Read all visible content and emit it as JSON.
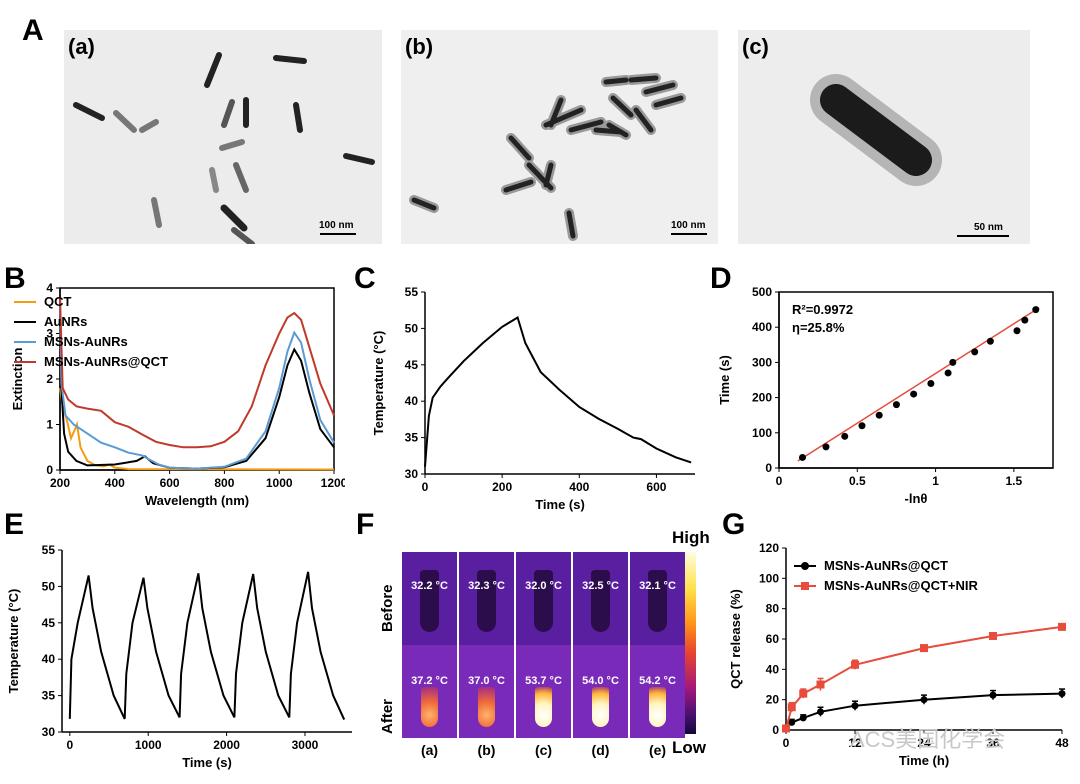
{
  "panels": {
    "A": {
      "letter": "A",
      "images": [
        {
          "label": "(a)",
          "scale": "100 nm"
        },
        {
          "label": "(b)",
          "scale": "100 nm"
        },
        {
          "label": "(c)",
          "scale": "50 nm"
        }
      ]
    },
    "B": {
      "letter": "B"
    },
    "C": {
      "letter": "C"
    },
    "D": {
      "letter": "D"
    },
    "E": {
      "letter": "E"
    },
    "F": {
      "letter": "F",
      "row_before": "Before",
      "row_after": "After",
      "cols": [
        "(a)",
        "(b)",
        "(c)",
        "(d)",
        "(e)"
      ],
      "before_temps": [
        "32.2 °C",
        "32.3 °C",
        "32.0 °C",
        "32.5 °C",
        "32.1 °C"
      ],
      "after_temps": [
        "37.2 °C",
        "37.0 °C",
        "53.7 °C",
        "54.0 °C",
        "54.2 °C"
      ],
      "colorbar_high": "High",
      "colorbar_low": "Low",
      "glow": [
        0.4,
        0.4,
        1.0,
        1.0,
        1.0
      ]
    },
    "G": {
      "letter": "G"
    }
  },
  "watermark": "ACS美国化学会",
  "chart_data": [
    {
      "id": "B",
      "type": "line",
      "xlabel": "Wavelength (nm)",
      "ylabel": "Extinction",
      "xlim": [
        200,
        1200
      ],
      "ylim": [
        0,
        4
      ],
      "xticks": [
        200,
        400,
        600,
        800,
        1000,
        1200
      ],
      "yticks": [
        0,
        1,
        2,
        3,
        4
      ],
      "legend": "top-left",
      "series": [
        {
          "name": "QCT",
          "color": "#f39c12",
          "x": [
            200,
            210,
            225,
            240,
            255,
            262,
            275,
            300,
            330,
            360,
            380,
            400,
            450,
            1200
          ],
          "y": [
            1.8,
            1.4,
            1.1,
            0.7,
            0.9,
            1.0,
            0.5,
            0.2,
            0.1,
            0.08,
            0.12,
            0.05,
            0.02,
            0.01
          ]
        },
        {
          "name": "AuNRs",
          "color": "#000000",
          "x": [
            200,
            205,
            215,
            230,
            260,
            300,
            400,
            480,
            510,
            540,
            600,
            700,
            800,
            880,
            950,
            1000,
            1030,
            1055,
            1080,
            1110,
            1150,
            1200
          ],
          "y": [
            3.4,
            1.8,
            0.8,
            0.4,
            0.2,
            0.1,
            0.12,
            0.2,
            0.3,
            0.15,
            0.05,
            0.03,
            0.06,
            0.2,
            0.7,
            1.6,
            2.3,
            2.65,
            2.4,
            1.7,
            0.9,
            0.5
          ]
        },
        {
          "name": "MSNs-AuNRs",
          "color": "#5b9bd5",
          "x": [
            200,
            205,
            220,
            250,
            300,
            350,
            400,
            450,
            500,
            520,
            560,
            600,
            700,
            800,
            880,
            950,
            1000,
            1030,
            1055,
            1080,
            1110,
            1150,
            1200
          ],
          "y": [
            3.6,
            1.9,
            1.2,
            1.0,
            0.8,
            0.6,
            0.5,
            0.38,
            0.32,
            0.25,
            0.12,
            0.05,
            0.03,
            0.07,
            0.25,
            0.85,
            1.8,
            2.6,
            3.02,
            2.8,
            2.0,
            1.1,
            0.6
          ]
        },
        {
          "name": "MSNs-AuNRs@QCT",
          "color": "#c0392b",
          "x": [
            200,
            210,
            230,
            260,
            300,
            350,
            400,
            450,
            500,
            550,
            600,
            650,
            700,
            750,
            800,
            850,
            900,
            950,
            1000,
            1030,
            1055,
            1080,
            1110,
            1150,
            1200
          ],
          "y": [
            3.8,
            1.8,
            1.55,
            1.4,
            1.35,
            1.3,
            1.05,
            0.95,
            0.78,
            0.62,
            0.55,
            0.5,
            0.5,
            0.52,
            0.62,
            0.85,
            1.4,
            2.3,
            3.0,
            3.35,
            3.45,
            3.3,
            2.7,
            1.9,
            1.2
          ]
        }
      ]
    },
    {
      "id": "C",
      "type": "line",
      "xlabel": "Time (s)",
      "ylabel": "Temperature (°C)",
      "xlim": [
        0,
        700
      ],
      "ylim": [
        30,
        55
      ],
      "xticks": [
        0,
        200,
        400,
        600
      ],
      "yticks": [
        30,
        35,
        40,
        45,
        50,
        55
      ],
      "series": [
        {
          "color": "#000000",
          "x": [
            0,
            10,
            20,
            40,
            60,
            100,
            150,
            200,
            240,
            260,
            300,
            350,
            400,
            450,
            500,
            540,
            560,
            600,
            650,
            690
          ],
          "y": [
            31,
            38,
            40.5,
            42,
            43.2,
            45.5,
            48,
            50.2,
            51.5,
            48,
            44,
            41.5,
            39.2,
            37.6,
            36.2,
            35,
            34.8,
            33.5,
            32.3,
            31.6
          ]
        }
      ]
    },
    {
      "id": "D",
      "type": "scatter",
      "xlabel": "-lnθ",
      "ylabel": "Time (s)",
      "xlim": [
        0,
        1.75
      ],
      "ylim": [
        0,
        500
      ],
      "xticks": [
        0.0,
        0.5,
        1.0,
        1.5
      ],
      "yticks": [
        0,
        100,
        200,
        300,
        400,
        500
      ],
      "annotations": [
        "R²=0.9972",
        "η=25.8%"
      ],
      "fit": {
        "x": [
          0.12,
          1.66
        ],
        "y": [
          20,
          455
        ],
        "color": "#e74c3c"
      },
      "series": [
        {
          "color": "#000000",
          "x": [
            0.15,
            0.3,
            0.42,
            0.53,
            0.64,
            0.75,
            0.86,
            0.97,
            1.08,
            1.11,
            1.25,
            1.35,
            1.52,
            1.57,
            1.64
          ],
          "y": [
            30,
            60,
            90,
            120,
            150,
            180,
            210,
            240,
            270,
            300,
            330,
            360,
            390,
            420,
            450
          ]
        }
      ]
    },
    {
      "id": "E",
      "type": "line",
      "xlabel": "Time (s)",
      "ylabel": "Temperature (°C)",
      "xlim": [
        -100,
        3600
      ],
      "ylim": [
        30,
        55
      ],
      "xticks": [
        0,
        1000,
        2000,
        3000
      ],
      "yticks": [
        30,
        35,
        40,
        45,
        50,
        55
      ],
      "series": [
        {
          "color": "#000000",
          "x": [
            0,
            20,
            100,
            240,
            290,
            400,
            560,
            700,
            720,
            800,
            940,
            990,
            1100,
            1260,
            1400,
            1420,
            1500,
            1640,
            1690,
            1800,
            1960,
            2100,
            2120,
            2200,
            2340,
            2390,
            2500,
            2660,
            2800,
            2820,
            2900,
            3040,
            3090,
            3200,
            3360,
            3500
          ],
          "y": [
            31.8,
            40,
            45,
            51.5,
            47,
            41,
            35,
            31.8,
            38,
            45,
            51.2,
            47,
            41,
            35,
            32,
            38,
            45,
            51.8,
            47,
            41,
            35,
            32,
            38,
            45,
            51.7,
            47,
            41,
            35,
            32,
            38,
            45,
            52,
            47,
            41,
            35,
            31.7
          ]
        }
      ]
    },
    {
      "id": "G",
      "type": "line",
      "xlabel": "Time (h)",
      "ylabel": "QCT release (%)",
      "xlim": [
        0,
        48
      ],
      "ylim": [
        0,
        120
      ],
      "xticks": [
        0,
        12,
        24,
        36,
        48
      ],
      "yticks": [
        0,
        20,
        40,
        60,
        80,
        100,
        120
      ],
      "legend": "top-left",
      "series": [
        {
          "name": "MSNs-AuNRs@QCT",
          "color": "#000000",
          "x": [
            0,
            1,
            3,
            6,
            12,
            24,
            36,
            48
          ],
          "y": [
            1,
            5,
            8,
            12,
            16,
            20,
            23,
            24
          ],
          "err": [
            1,
            2,
            2,
            3,
            3,
            3,
            3,
            3
          ]
        },
        {
          "name": "MSNs-AuNRs@QCT+NIR",
          "color": "#e74c3c",
          "x": [
            0,
            1,
            3,
            6,
            12,
            24,
            36,
            48
          ],
          "y": [
            1,
            15,
            24,
            30,
            43,
            54,
            62,
            68
          ],
          "err": [
            1,
            3,
            3,
            4,
            3,
            2,
            2,
            2
          ]
        }
      ]
    }
  ]
}
